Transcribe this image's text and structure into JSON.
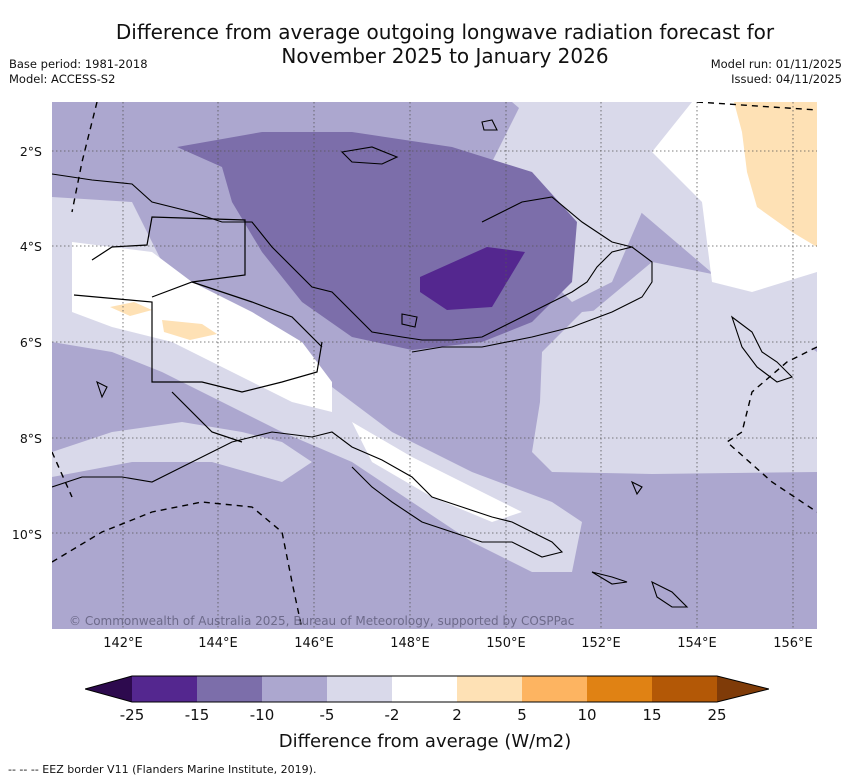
{
  "title_line1": "Difference from average outgoing longwave radiation forecast for",
  "title_line2": "November 2025 to January 2026",
  "base_period": "Base period: 1981-2018",
  "model": "Model: ACCESS-S2",
  "model_run": "Model run: 01/11/2025",
  "issued": "Issued: 04/11/2025",
  "copyright": "© Commonwealth of Australia 2025, Bureau of Meteorology, supported by COSPPac",
  "lat_labels": [
    "2°S",
    "4°S",
    "6°S",
    "8°S",
    "10°S"
  ],
  "lon_labels": [
    "142°E",
    "144°E",
    "146°E",
    "148°E",
    "150°E",
    "152°E",
    "154°E",
    "156°E"
  ],
  "colorbar": {
    "ticks": [
      "-25",
      "-15",
      "-10",
      "-5",
      "-2",
      "2",
      "5",
      "10",
      "15",
      "25"
    ],
    "colors": [
      "#54278f",
      "#7c6eaa",
      "#aca7cf",
      "#d9d9ea",
      "#ffffff",
      "#fee1b5",
      "#fdb461",
      "#e08214",
      "#b35806"
    ],
    "under_color": "#2d0a4e",
    "over_color": "#7f3b08",
    "title": "Difference from average (W/m2)"
  },
  "footer": "--  --  -- EEZ border V11 (Flanders Marine Institute, 2019)."
}
